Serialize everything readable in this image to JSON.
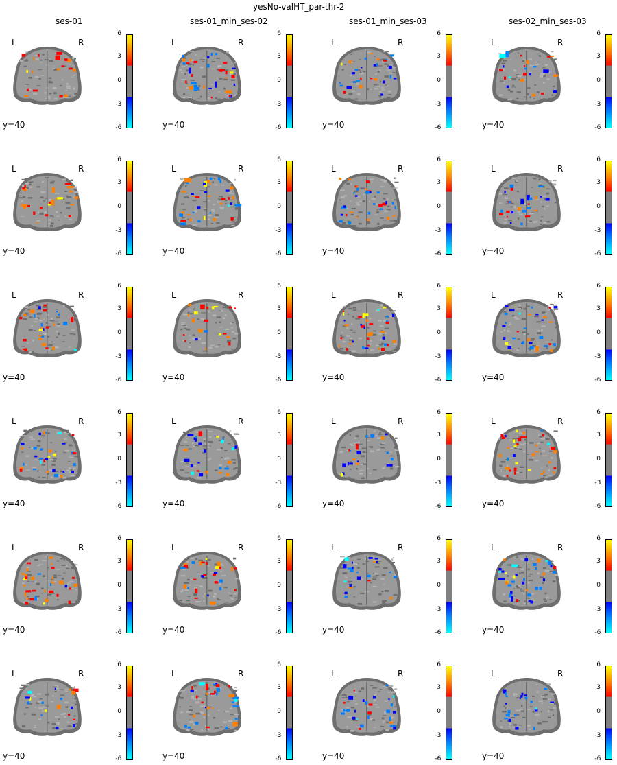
{
  "title": "yesNo-valHT_par-thr-2",
  "columns": [
    "ses-01",
    "ses-01_min_ses-02",
    "ses-01_min_ses-03",
    "ses-02_min_ses-03"
  ],
  "orientation": {
    "left": "L",
    "right": "R"
  },
  "slice_label": "y=40",
  "colorbar": {
    "ticks": [
      "6",
      "3",
      "0",
      "-3",
      "-6"
    ],
    "colors": {
      "hot_top": "#ffff00",
      "hot_mid": "#ff7f00",
      "hot_low": "#ff0000",
      "neutral": "#808080",
      "cold_low": "#0000ff",
      "cold_mid": "#007fff",
      "cold_top": "#00ffff"
    }
  },
  "brain_colors": {
    "outer": "#6e6e6e",
    "tissue": "#9a9a9a",
    "light": "#b2b2b2"
  },
  "rows": 6
}
